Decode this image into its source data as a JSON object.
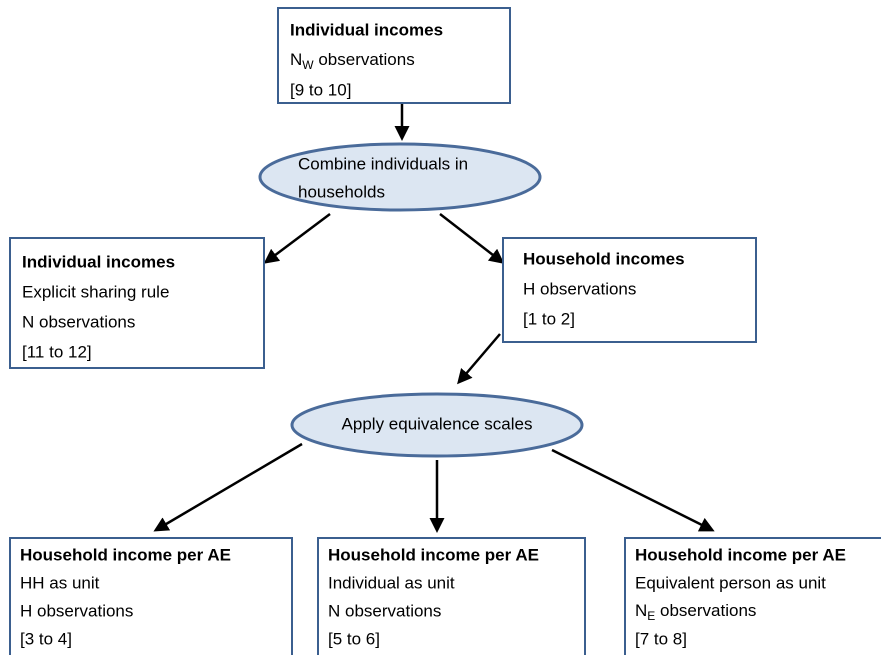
{
  "boxes": [
    {
      "title": "Individual incomes",
      "lines": [
        {
          "base": "N",
          "sub": "W",
          "rest": " observations"
        },
        "[9 to 10]"
      ]
    },
    {
      "title": "Individual incomes",
      "lines": [
        "Explicit sharing rule",
        "N observations",
        "[11 to 12]"
      ]
    },
    {
      "title": "Household incomes",
      "lines": [
        "H observations",
        "[1 to 2]"
      ]
    },
    {
      "title": "Household income per AE",
      "lines": [
        "HH as unit",
        "H observations",
        "[3 to 4]"
      ]
    },
    {
      "title": "Household income per AE",
      "lines": [
        "Individual as unit",
        "N observations",
        "[5 to 6]"
      ]
    },
    {
      "title": "Household income per AE",
      "lines": [
        "Equivalent person as unit",
        {
          "base": "N",
          "sub": "E",
          "rest": " observations"
        },
        "[7 to 8]"
      ]
    }
  ],
  "steps": [
    {
      "lines": [
        "Combine individuals in",
        "households"
      ]
    },
    {
      "lines": [
        "Apply equivalence scales"
      ]
    }
  ]
}
